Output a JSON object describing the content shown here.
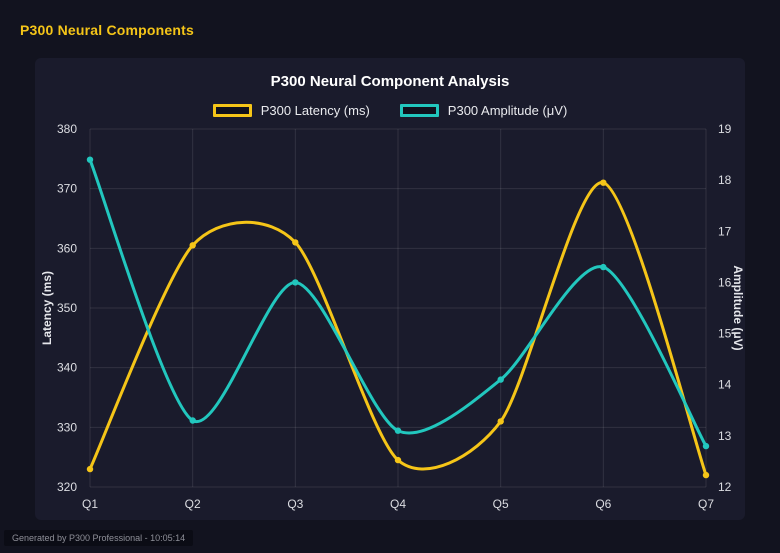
{
  "page": {
    "header": "P300 Neural Components",
    "footer": "Generated by P300 Professional - 10:05:14"
  },
  "colors": {
    "accent": "#f5c518",
    "latency_line": "#f5c518",
    "amplitude_line": "#22c7be",
    "page_bg": "#12131f",
    "panel_bg": "#1a1b2c",
    "grid": "rgba(255,255,255,0.10)"
  },
  "chart_data": {
    "type": "line",
    "title": "P300 Neural Component Analysis",
    "categories": [
      "Q1",
      "Q2",
      "Q3",
      "Q4",
      "Q5",
      "Q6",
      "Q7"
    ],
    "series": [
      {
        "name": "P300 Latency (ms)",
        "axis": "left",
        "color": "#f5c518",
        "values": [
          323,
          360.5,
          361,
          324.5,
          331,
          371,
          322
        ]
      },
      {
        "name": "P300 Amplitude (μV)",
        "axis": "right",
        "color": "#22c7be",
        "values": [
          18.4,
          13.3,
          16.0,
          13.1,
          14.1,
          16.3,
          12.8
        ]
      }
    ],
    "left_axis": {
      "label": "Latency (ms)",
      "min": 320,
      "max": 380,
      "step": 10
    },
    "right_axis": {
      "label": "Amplitude (μV)",
      "min": 12,
      "max": 19,
      "step": 1
    },
    "legend_position": "top",
    "grid": true,
    "smoothing": "bezier"
  }
}
